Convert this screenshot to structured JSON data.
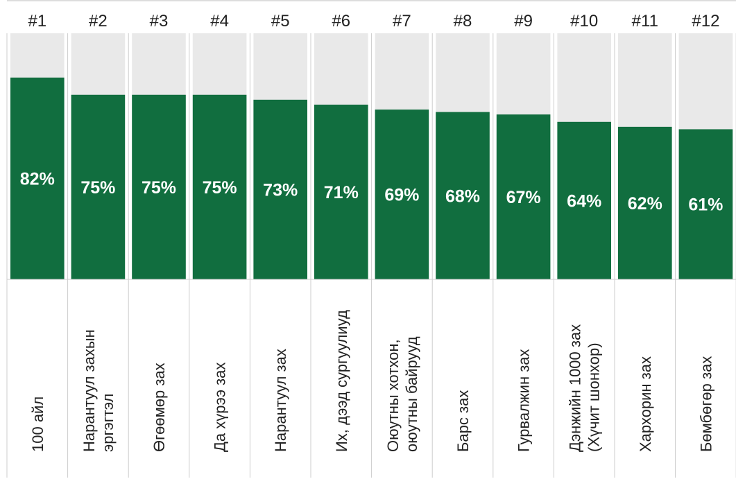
{
  "chart_data": {
    "type": "bar",
    "categories": [
      [
        "100 айл"
      ],
      [
        "Нарантуул захын",
        "эргэгтэл"
      ],
      [
        "Өгөөмөр зах"
      ],
      [
        "Да хүрээ зах"
      ],
      [
        "Нарантуул зах"
      ],
      [
        "Их, дээд сургуулиуд"
      ],
      [
        "Оюутны хотхон,",
        "оюутны байрууд"
      ],
      [
        "Барс зах"
      ],
      [
        "Гурвалжин зах"
      ],
      [
        "Дэнжийн 1000 зах",
        "(Хүчит шонхор)"
      ],
      [
        "Хархорин зах"
      ],
      [
        "Бөмбөгөр зах"
      ]
    ],
    "ranks": [
      "#1",
      "#2",
      "#3",
      "#4",
      "#5",
      "#6",
      "#7",
      "#8",
      "#9",
      "#10",
      "#11",
      "#12"
    ],
    "values": [
      82,
      75,
      75,
      75,
      73,
      71,
      69,
      68,
      67,
      64,
      62,
      61
    ],
    "value_labels": [
      "82%",
      "75%",
      "75%",
      "75%",
      "73%",
      "71%",
      "69%",
      "68%",
      "67%",
      "64%",
      "62%",
      "61%"
    ],
    "ylim": [
      0,
      100
    ],
    "grid": false,
    "legend": "none",
    "colors": {
      "bar": "#116e3f",
      "track": "#e9e9e9",
      "label": "#ffffff",
      "line": "#cccccc"
    }
  }
}
